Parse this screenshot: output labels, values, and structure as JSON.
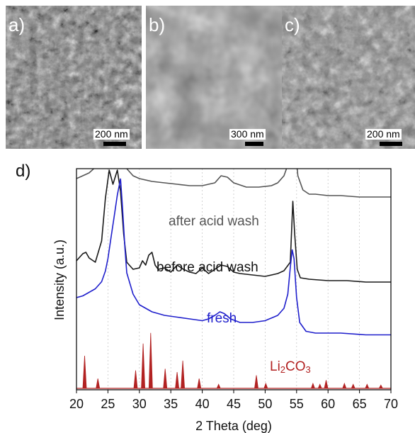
{
  "panels": {
    "a": {
      "label": "a)",
      "scale": "200 nm"
    },
    "b": {
      "label": "b)",
      "scale": "300 nm"
    },
    "c": {
      "label": "c)",
      "scale": "200 nm"
    },
    "d": {
      "label": "d)"
    }
  },
  "chart_data": {
    "type": "line",
    "xlabel": "2 Theta (deg)",
    "ylabel": "Intensity (a.u.)",
    "xlim": [
      20,
      70
    ],
    "x_ticks": [
      "20",
      "25",
      "30",
      "35",
      "40",
      "45",
      "50",
      "55",
      "60",
      "65",
      "70"
    ],
    "grid": "vertical dotted lines at each 5 deg",
    "y_ticks": "none",
    "colors": {
      "after": "#555555",
      "before": "#1a1a1a",
      "fresh": "#1f1fcc",
      "li2co3": "#b22222"
    },
    "series": [
      {
        "name": "after acid wash",
        "label_text": "after acid wash",
        "x": [
          20,
          21,
          22,
          23,
          24,
          24.6,
          25.2,
          25.8,
          26.5,
          27,
          27.5,
          28,
          29,
          30,
          32,
          34,
          36,
          38,
          40,
          42,
          43,
          44,
          45,
          47,
          49,
          51,
          52,
          53,
          53.8,
          54.2,
          54.5,
          54.8,
          55.2,
          56,
          57,
          58,
          60,
          62,
          65,
          68,
          70
        ],
        "y": [
          0.58,
          0.6,
          0.62,
          0.66,
          0.76,
          0.95,
          1.0,
          0.92,
          1.0,
          0.9,
          0.72,
          0.65,
          0.6,
          0.58,
          0.56,
          0.55,
          0.54,
          0.53,
          0.53,
          0.55,
          0.6,
          0.59,
          0.55,
          0.52,
          0.52,
          0.53,
          0.55,
          0.6,
          0.7,
          0.9,
          0.95,
          0.8,
          0.6,
          0.5,
          0.47,
          0.47,
          0.46,
          0.46,
          0.45,
          0.45,
          0.45
        ]
      },
      {
        "name": "before acid wash",
        "label_text": "before acid wash",
        "x": [
          20,
          21,
          21.5,
          22,
          23,
          24,
          24.6,
          25.2,
          25.8,
          26.5,
          27,
          27.5,
          28,
          29,
          30,
          30.5,
          31,
          31.5,
          32,
          32.5,
          33,
          34,
          35,
          36,
          37,
          38,
          39,
          40,
          41,
          42,
          43,
          44,
          45,
          46,
          48,
          50,
          52,
          53,
          54,
          54.4,
          54.7,
          55.1,
          55.6,
          57,
          60,
          63,
          66,
          70
        ],
        "y": [
          0.36,
          0.41,
          0.42,
          0.38,
          0.35,
          0.5,
          0.8,
          1.0,
          0.9,
          1.0,
          0.85,
          0.55,
          0.35,
          0.3,
          0.31,
          0.36,
          0.33,
          0.4,
          0.42,
          0.33,
          0.3,
          0.31,
          0.28,
          0.33,
          0.3,
          0.28,
          0.27,
          0.31,
          0.27,
          0.3,
          0.33,
          0.32,
          0.28,
          0.27,
          0.26,
          0.25,
          0.27,
          0.29,
          0.35,
          0.78,
          0.55,
          0.3,
          0.24,
          0.23,
          0.22,
          0.22,
          0.21,
          0.21
        ]
      },
      {
        "name": "fresh",
        "label_text": "fresh",
        "x": [
          20,
          21,
          22,
          23,
          24,
          24.6,
          25,
          25.5,
          26,
          26.5,
          27,
          27.3,
          27.7,
          28,
          29,
          30,
          32,
          34,
          36,
          38,
          40,
          41,
          42,
          42.8,
          43.5,
          44.5,
          46,
          48,
          50,
          52,
          53,
          53.6,
          54,
          54.3,
          54.6,
          55,
          55.5,
          56.5,
          58,
          62,
          66,
          70
        ],
        "y": [
          0.28,
          0.29,
          0.31,
          0.33,
          0.37,
          0.43,
          0.5,
          0.62,
          0.74,
          0.86,
          0.95,
          0.8,
          0.56,
          0.42,
          0.3,
          0.24,
          0.2,
          0.18,
          0.17,
          0.16,
          0.15,
          0.16,
          0.18,
          0.2,
          0.19,
          0.16,
          0.14,
          0.14,
          0.15,
          0.18,
          0.22,
          0.3,
          0.45,
          0.55,
          0.5,
          0.28,
          0.14,
          0.09,
          0.08,
          0.08,
          0.07,
          0.07
        ]
      },
      {
        "name": "Li2CO3",
        "label_text": "Li",
        "label_sub": "2",
        "label_text2": "CO",
        "label_sub2": "3",
        "peaks_x": [
          21.3,
          23.4,
          29.4,
          30.6,
          31.8,
          34.1,
          36.0,
          36.9,
          39.5,
          42.6,
          48.6,
          50.1,
          57.6,
          58.7,
          59.7,
          62.6,
          64.0,
          66.2,
          68.4
        ],
        "peaks_y": [
          0.4,
          0.12,
          0.22,
          0.55,
          0.68,
          0.24,
          0.2,
          0.34,
          0.12,
          0.05,
          0.16,
          0.06,
          0.06,
          0.05,
          0.1,
          0.06,
          0.05,
          0.05,
          0.04
        ]
      }
    ]
  }
}
